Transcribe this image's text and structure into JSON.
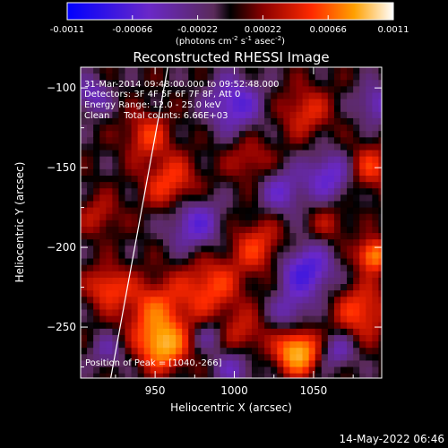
{
  "chart_data": {
    "type": "heatmap",
    "title": "Reconstructed RHESSI Image",
    "xlabel": "Heliocentric X (arcsec)",
    "ylabel": "Heliocentric Y (arcsec)",
    "xlim": [
      903,
      1093
    ],
    "ylim": [
      -282,
      -87
    ],
    "x_ticks": [
      950,
      1000,
      1050
    ],
    "y_ticks": [
      -100,
      -150,
      -200,
      -250
    ],
    "colorbar": {
      "range": [
        -0.0011,
        0.0011
      ],
      "ticks": [
        "-0.0011",
        "-0.00066",
        "-0.00022",
        "0.00022",
        "0.00066",
        "0.0011"
      ],
      "unit_parts": [
        "(photons cm",
        "-2",
        " s",
        "-1",
        " asec",
        "-2",
        ")"
      ]
    },
    "info_lines": [
      "31-Mar-2014 09:48:00.000 to 09:52:48.000",
      "Detectors: 3F 4F 5F 6F 7F 8F, Att 0",
      "Energy Range: 12.0 - 25.0 keV",
      "Clean     Total counts: 6.66E+03"
    ],
    "peak_label": "Position of Peak = [1040,-266]",
    "peak": [
      1040,
      -266
    ],
    "limb_line": [
      [
        958,
        -87
      ],
      [
        922,
        -282
      ]
    ],
    "timestamp": "14-May-2022 06:46",
    "image_blobs": [
      {
        "x": 1040,
        "y": -266,
        "v": 1.0,
        "s": 9
      },
      {
        "x": 955,
        "y": -262,
        "v": 0.85,
        "s": 10
      },
      {
        "x": 1088,
        "y": -205,
        "v": 0.8,
        "s": 7
      },
      {
        "x": 950,
        "y": -240,
        "v": 0.55,
        "s": 14
      },
      {
        "x": 985,
        "y": -225,
        "v": 0.5,
        "s": 13
      },
      {
        "x": 1015,
        "y": -200,
        "v": 0.45,
        "s": 12
      },
      {
        "x": 960,
        "y": -160,
        "v": 0.5,
        "s": 12
      },
      {
        "x": 945,
        "y": -130,
        "v": 0.45,
        "s": 10
      },
      {
        "x": 1045,
        "y": -115,
        "v": 0.4,
        "s": 11
      },
      {
        "x": 1085,
        "y": -150,
        "v": 0.45,
        "s": 10
      },
      {
        "x": 1080,
        "y": -240,
        "v": 0.5,
        "s": 12
      },
      {
        "x": 1005,
        "y": -255,
        "v": 0.35,
        "s": 10
      },
      {
        "x": 920,
        "y": -225,
        "v": 0.5,
        "s": 9
      },
      {
        "x": 915,
        "y": -180,
        "v": 0.3,
        "s": 9
      },
      {
        "x": 1010,
        "y": -145,
        "v": 0.3,
        "s": 10
      },
      {
        "x": 1060,
        "y": -185,
        "v": 0.25,
        "s": 9
      },
      {
        "x": 975,
        "y": -185,
        "v": -0.55,
        "s": 12
      },
      {
        "x": 1045,
        "y": -215,
        "v": -0.7,
        "s": 12
      },
      {
        "x": 1000,
        "y": -110,
        "v": -0.6,
        "s": 12
      },
      {
        "x": 1060,
        "y": -155,
        "v": -0.55,
        "s": 11
      },
      {
        "x": 1090,
        "y": -110,
        "v": -0.45,
        "s": 9
      },
      {
        "x": 1030,
        "y": -165,
        "v": -0.45,
        "s": 10
      },
      {
        "x": 910,
        "y": -105,
        "v": -0.45,
        "s": 8
      },
      {
        "x": 1000,
        "y": -275,
        "v": -0.4,
        "s": 9
      },
      {
        "x": 920,
        "y": -265,
        "v": -0.3,
        "s": 8
      },
      {
        "x": 1065,
        "y": -265,
        "v": -0.4,
        "s": 8
      },
      {
        "x": 985,
        "y": -255,
        "v": -0.3,
        "s": 7
      },
      {
        "x": 1035,
        "y": -240,
        "v": -0.35,
        "s": 8
      }
    ]
  }
}
